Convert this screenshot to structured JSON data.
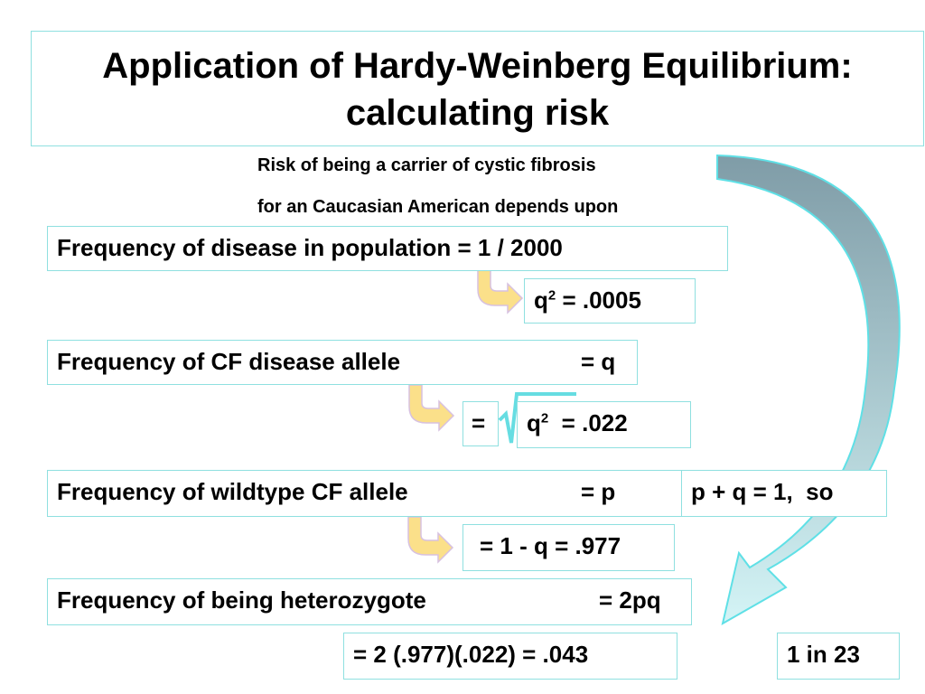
{
  "slide": {
    "title_line1": "Application of Hardy-Weinberg Equilibrium:",
    "title_line2": "calculating risk",
    "intro_line1": "Risk of being a carrier of cystic fibrosis",
    "intro_line2": "for an Caucasian American depends upon",
    "row1": {
      "label": "Frequency of disease in population = 1 / 2000"
    },
    "q2": {
      "base": "q",
      "exp": "2",
      "rest": " = .0005"
    },
    "row2": {
      "label": "Frequency of CF disease allele",
      "value": "= q"
    },
    "sqrt_eq": "=",
    "q": {
      "base": "q",
      "exp": "2",
      "rest": "  = .022"
    },
    "row3": {
      "label": "Frequency of wildtype CF allele",
      "value": "= p"
    },
    "pq_note": "p + q = 1,  so",
    "p_calc": "= 1 - q = .977",
    "row4": {
      "label": "Frequency of being heterozygote",
      "value": "= 2pq"
    },
    "het_calc": "= 2 (.977)(.022) = .043",
    "result": "1 in 23"
  },
  "colors": {
    "box_border": "#8fe0e0",
    "arrow_fill": "#fbe08a",
    "arrow_stroke": "#d7c1e0",
    "curve_top": "#7f9ca7",
    "curve_bottom": "#d4f4f6",
    "curve_stroke": "#5fe0e6"
  }
}
